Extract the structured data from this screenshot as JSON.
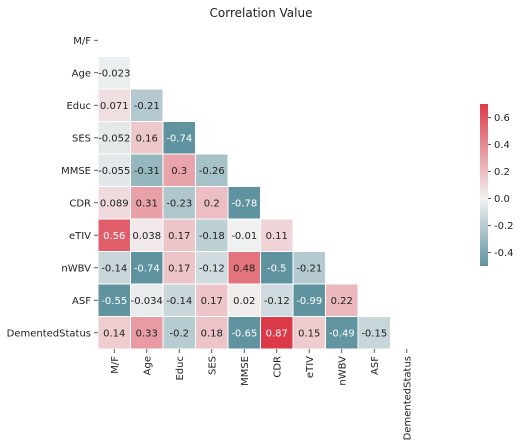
{
  "chart_data": {
    "type": "heatmap",
    "title": "Correlation Value",
    "labels": [
      "M/F",
      "Age",
      "Educ",
      "SES",
      "MMSE",
      "CDR",
      "eTIV",
      "nWBV",
      "ASF",
      "DementedStatus"
    ],
    "lower_triangle_only": true,
    "matrix": [
      [],
      [
        -0.023
      ],
      [
        0.071,
        -0.21
      ],
      [
        -0.052,
        0.16,
        -0.74
      ],
      [
        -0.055,
        -0.31,
        0.3,
        -0.26
      ],
      [
        0.089,
        0.31,
        -0.23,
        0.2,
        -0.78
      ],
      [
        0.56,
        0.038,
        0.17,
        -0.18,
        -0.01,
        0.11
      ],
      [
        -0.14,
        -0.74,
        0.17,
        -0.12,
        0.48,
        -0.5,
        -0.21
      ],
      [
        -0.55,
        -0.034,
        -0.14,
        0.17,
        0.02,
        -0.12,
        -0.99,
        0.22
      ],
      [
        0.14,
        0.33,
        -0.2,
        0.18,
        -0.65,
        0.87,
        0.15,
        -0.49,
        -0.15
      ]
    ],
    "color_range": [
      -0.5,
      0.7
    ],
    "colors": {
      "negative": "#5f93a0",
      "center": "#f2f2f2",
      "positive": "#dc3a49"
    },
    "colorbar": {
      "ticks": [
        0.6,
        0.4,
        0.2,
        0.0,
        -0.2,
        -0.4
      ],
      "position": "right"
    }
  }
}
